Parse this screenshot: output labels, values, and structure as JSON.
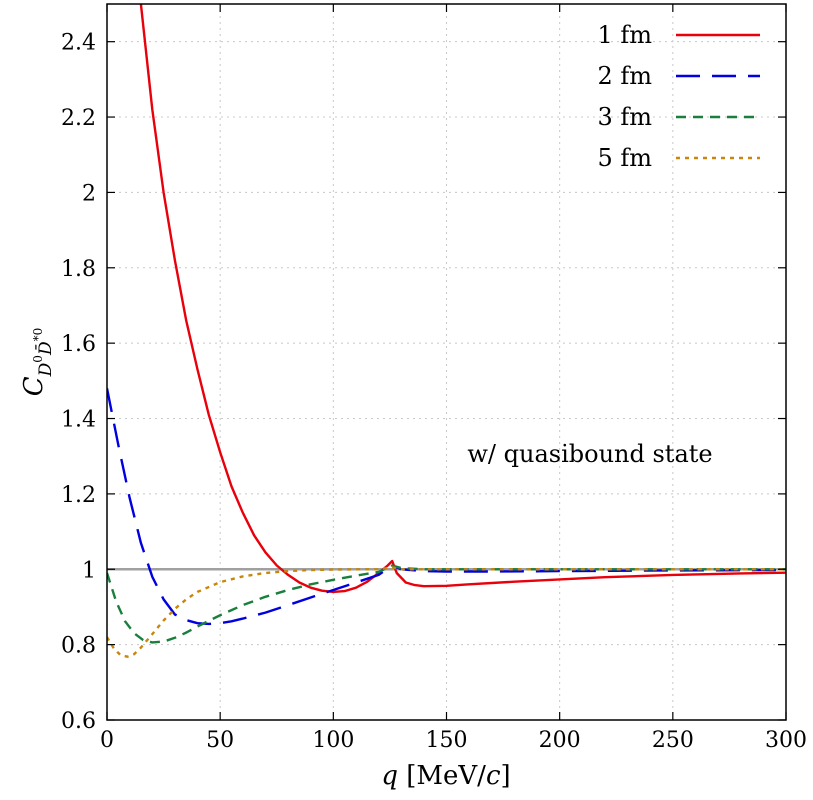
{
  "chart_data": {
    "type": "line",
    "title": "",
    "xlabel": "q [MeV/c]",
    "xlabel_parts": {
      "var": "q",
      "unit": " [MeV/",
      "unit_var": "c",
      "close": "]"
    },
    "ylabel": "C_{D^0 D̄^{*0}}",
    "ylabel_parts": {
      "main": "C",
      "sub1": "D",
      "sup1": "0",
      "sub2": "D̄",
      "sup2": "*0"
    },
    "xlim": [
      0,
      300
    ],
    "ylim": [
      0.6,
      2.5
    ],
    "xticks": [
      0,
      50,
      100,
      150,
      200,
      250,
      300
    ],
    "yticks": [
      0.6,
      0.8,
      1,
      1.2,
      1.4,
      1.6,
      1.8,
      2,
      2.2,
      2.4
    ],
    "grid": true,
    "legend_position": "top-right",
    "annotation": "w/ quasibound state",
    "reference_line": {
      "y": 1,
      "color": "#a0a0a0"
    },
    "series": [
      {
        "name": "1 fm",
        "color": "#e8000b",
        "style": "solid",
        "x": [
          15,
          20,
          25,
          30,
          35,
          40,
          45,
          50,
          55,
          60,
          65,
          70,
          75,
          80,
          85,
          90,
          95,
          100,
          105,
          110,
          115,
          120,
          124,
          126,
          128,
          132,
          136,
          140,
          150,
          160,
          180,
          200,
          220,
          250,
          280,
          300
        ],
        "y": [
          2.5,
          2.22,
          2.0,
          1.82,
          1.66,
          1.53,
          1.41,
          1.31,
          1.22,
          1.15,
          1.09,
          1.045,
          1.01,
          0.985,
          0.965,
          0.951,
          0.943,
          0.94,
          0.942,
          0.951,
          0.967,
          0.99,
          1.01,
          1.022,
          0.99,
          0.965,
          0.958,
          0.955,
          0.956,
          0.96,
          0.967,
          0.973,
          0.979,
          0.985,
          0.989,
          0.991
        ]
      },
      {
        "name": "2 fm",
        "color": "#0000e0",
        "style": "longdash",
        "x": [
          0,
          5,
          10,
          15,
          20,
          25,
          30,
          35,
          40,
          45,
          50,
          55,
          60,
          70,
          80,
          90,
          100,
          110,
          120,
          126,
          130,
          140,
          150,
          170,
          200,
          250,
          300
        ],
        "y": [
          1.48,
          1.33,
          1.19,
          1.07,
          0.98,
          0.92,
          0.88,
          0.865,
          0.857,
          0.855,
          0.857,
          0.862,
          0.869,
          0.885,
          0.905,
          0.925,
          0.945,
          0.965,
          0.985,
          1.01,
          1.0,
          0.995,
          0.994,
          0.994,
          0.995,
          0.997,
          0.998
        ]
      },
      {
        "name": "3 fm",
        "color": "#1a7f3c",
        "style": "dash",
        "x": [
          0,
          4,
          8,
          12,
          16,
          20,
          25,
          30,
          35,
          40,
          50,
          60,
          70,
          80,
          90,
          100,
          110,
          120,
          126,
          130,
          140,
          160,
          200,
          250,
          300
        ],
        "y": [
          0.99,
          0.915,
          0.862,
          0.83,
          0.812,
          0.806,
          0.808,
          0.818,
          0.832,
          0.848,
          0.878,
          0.905,
          0.927,
          0.945,
          0.96,
          0.972,
          0.983,
          0.993,
          1.01,
          1.003,
          1.0,
          1.0,
          1.0,
          1.0,
          1.0
        ]
      },
      {
        "name": "5 fm",
        "color": "#c8860a",
        "style": "dot",
        "x": [
          0,
          3,
          6,
          9,
          12,
          15,
          20,
          25,
          30,
          35,
          40,
          50,
          60,
          70,
          80,
          90,
          100,
          110,
          120,
          126,
          130,
          150,
          200,
          300
        ],
        "y": [
          0.82,
          0.79,
          0.772,
          0.768,
          0.775,
          0.792,
          0.828,
          0.864,
          0.895,
          0.92,
          0.94,
          0.966,
          0.981,
          0.99,
          0.995,
          0.998,
          0.999,
          1.0,
          1.0,
          1.005,
          1.0,
          1.0,
          1.0,
          1.0
        ]
      }
    ]
  }
}
